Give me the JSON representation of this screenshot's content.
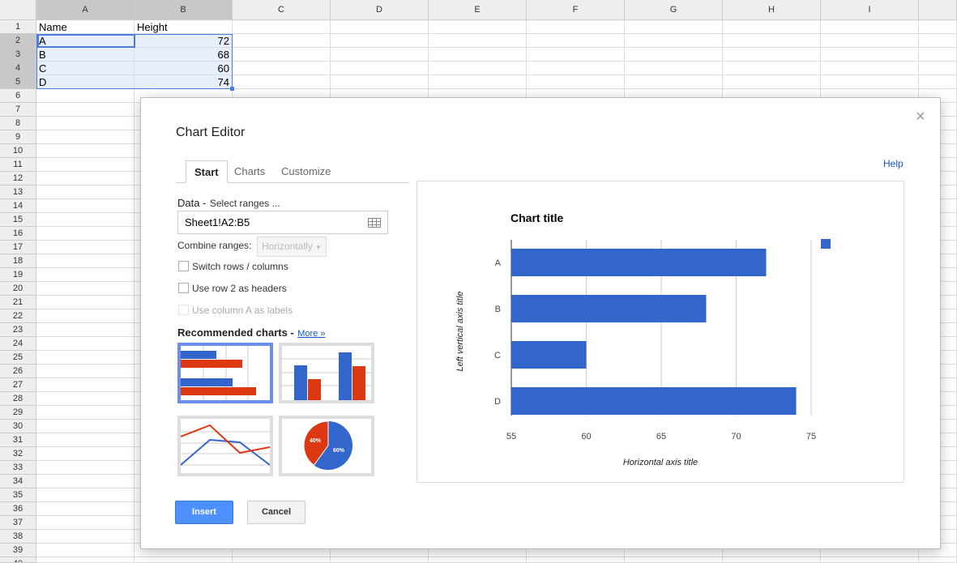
{
  "sheet": {
    "columns": [
      "A",
      "B",
      "C",
      "D",
      "E",
      "F",
      "G",
      "H",
      "I"
    ],
    "row_count": 40,
    "cells": [
      [
        "Name",
        "Height"
      ],
      [
        "A",
        "72"
      ],
      [
        "B",
        "68"
      ],
      [
        "C",
        "60"
      ],
      [
        "D",
        "74"
      ]
    ]
  },
  "dialog": {
    "title": "Chart Editor",
    "close": "×",
    "help": "Help",
    "tabs": [
      {
        "label": "Start"
      },
      {
        "label": "Charts"
      },
      {
        "label": "Customize"
      }
    ],
    "data_label": "Data -",
    "data_hint": "Select ranges ...",
    "range_value": "Sheet1!A2:B5",
    "combine_label": "Combine ranges:",
    "combine_value": "Horizontally",
    "options": [
      {
        "label": "Switch rows / columns",
        "checked": false,
        "disabled": false
      },
      {
        "label": "Use row 2 as headers",
        "checked": false,
        "disabled": false
      },
      {
        "label": "Use column A as labels",
        "checked": false,
        "disabled": true
      }
    ],
    "recommended_label": "Recommended charts -",
    "more_link": "More »",
    "recommended": [
      "bar-chart",
      "column-chart",
      "line-chart",
      "pie-chart"
    ],
    "pie_labels": [
      "40%",
      "60%"
    ],
    "insert": "Insert",
    "cancel": "Cancel"
  },
  "colors": {
    "blue": "#3366cc",
    "red": "#dc3912",
    "accent": "#4d90fe"
  },
  "chart_data": {
    "type": "bar",
    "orientation": "horizontal",
    "title": "Chart title",
    "xlabel": "Horizontal axis title",
    "ylabel": "Left vertical axis title",
    "categories": [
      "A",
      "B",
      "C",
      "D"
    ],
    "values": [
      72,
      68,
      60,
      74
    ],
    "xlim": [
      55,
      76
    ],
    "xticks": [
      "55",
      "60",
      "65",
      "70",
      "75"
    ],
    "grid": true,
    "legend": "top-right"
  }
}
